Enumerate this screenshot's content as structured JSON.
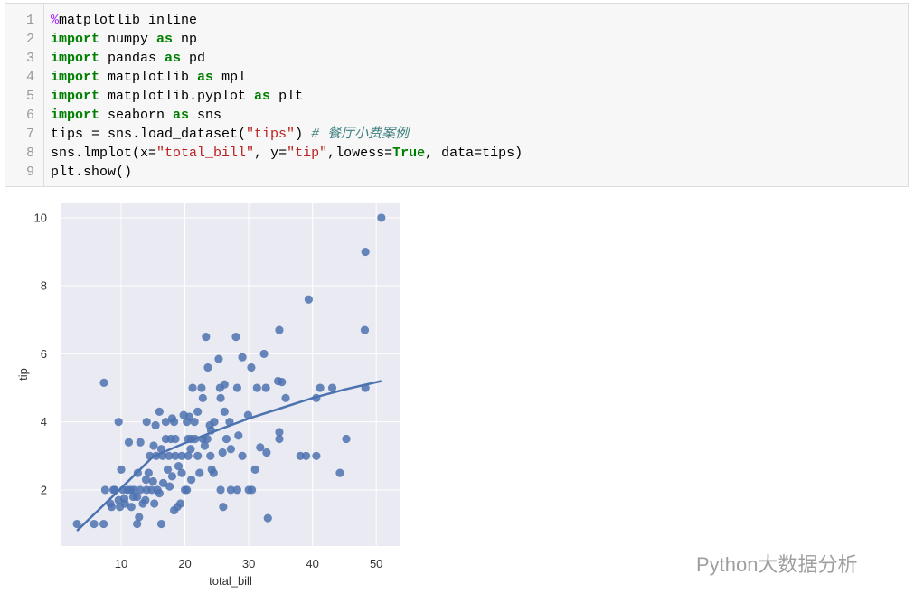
{
  "code": {
    "lines": [
      {
        "number": 1,
        "tokens": [
          {
            "text": "%",
            "class": "mg"
          },
          {
            "text": "matplotlib inline"
          }
        ]
      },
      {
        "number": 2,
        "tokens": [
          {
            "text": "import",
            "class": "kw"
          },
          {
            "text": " numpy "
          },
          {
            "text": "as",
            "class": "kw"
          },
          {
            "text": " np"
          }
        ]
      },
      {
        "number": 3,
        "tokens": [
          {
            "text": "import",
            "class": "kw"
          },
          {
            "text": " pandas "
          },
          {
            "text": "as",
            "class": "kw"
          },
          {
            "text": " pd"
          }
        ]
      },
      {
        "number": 4,
        "tokens": [
          {
            "text": "import",
            "class": "kw"
          },
          {
            "text": " matplotlib "
          },
          {
            "text": "as",
            "class": "kw"
          },
          {
            "text": " mpl"
          }
        ]
      },
      {
        "number": 5,
        "tokens": [
          {
            "text": "import",
            "class": "kw"
          },
          {
            "text": " matplotlib.pyplot "
          },
          {
            "text": "as",
            "class": "kw"
          },
          {
            "text": " plt"
          }
        ]
      },
      {
        "number": 6,
        "tokens": [
          {
            "text": "import",
            "class": "kw"
          },
          {
            "text": " seaborn "
          },
          {
            "text": "as",
            "class": "kw"
          },
          {
            "text": " sns"
          }
        ]
      },
      {
        "number": 7,
        "tokens": [
          {
            "text": "tips = sns.load_dataset("
          },
          {
            "text": "\"tips\"",
            "class": "str"
          },
          {
            "text": ") "
          },
          {
            "text": "# 餐厅小费案例",
            "class": "cm"
          }
        ]
      },
      {
        "number": 8,
        "tokens": [
          {
            "text": "sns.lmplot(x="
          },
          {
            "text": "\"total_bill\"",
            "class": "str"
          },
          {
            "text": ", y="
          },
          {
            "text": "\"tip\"",
            "class": "str"
          },
          {
            "text": ",lowess="
          },
          {
            "text": "True",
            "class": "kw"
          },
          {
            "text": ", data=tips)"
          }
        ]
      },
      {
        "number": 9,
        "tokens": [
          {
            "text": "plt.show()"
          }
        ]
      }
    ]
  },
  "chart_data": {
    "type": "scatter",
    "xlabel": "total_bill",
    "ylabel": "tip",
    "color": "#4c72b0",
    "background": "#eaeaf2",
    "grid": true,
    "xlim": [
      0.5,
      53.8
    ],
    "ylim": [
      0.35,
      10.45
    ],
    "xticks": [
      10,
      20,
      30,
      40,
      50
    ],
    "yticks": [
      2,
      4,
      6,
      8,
      10
    ],
    "x": [
      50.8,
      48.3,
      39.4,
      48.2,
      34.8,
      23.3,
      28.0,
      32.4,
      29,
      25.3,
      23.6,
      30.4,
      7.3,
      26.2,
      34.6,
      35.2,
      21.2,
      22.6,
      25.5,
      28.2,
      31.3,
      32.7,
      41.2,
      43.1,
      48.3,
      35.8,
      40.6,
      25.6,
      26.2,
      16,
      9.6,
      14,
      17,
      18.3,
      20.3,
      21.5,
      24.6,
      27,
      20.7,
      19.8,
      22,
      23.9,
      18,
      15.4,
      24.1,
      29.9,
      34.8,
      34.8,
      45.3,
      28.4,
      17,
      17.8,
      18.5,
      20.5,
      21.6,
      22.8,
      26.5,
      31.8,
      32.8,
      25.9,
      27.2,
      15.1,
      16.3,
      13,
      11.2,
      14.5,
      15.5,
      16.5,
      17.5,
      18.5,
      19.5,
      20.5,
      22,
      24,
      29,
      38.1,
      39,
      40.6,
      44.3,
      33,
      26,
      20.3,
      21,
      22.3,
      24.2,
      25.6,
      27.2,
      28.2,
      30,
      30.5,
      31,
      12.6,
      13.9,
      14.8,
      15.7,
      16.6,
      17.6,
      18.8,
      19.3,
      20,
      10,
      10.3,
      10.6,
      11,
      11.5,
      12,
      12.5,
      13,
      13.4,
      14,
      9,
      9.6,
      9.8,
      8.5,
      7.5,
      7.25,
      5.75,
      3.07,
      12.5,
      12.8,
      16.3,
      18.3,
      8.8,
      10.5,
      11.9,
      13.8,
      14.3,
      15,
      16,
      17.3,
      18,
      19,
      20.9,
      21,
      23.1,
      24.5,
      22.8,
      23.5,
      19.5,
      15.2,
      11.6,
      8.3
    ],
    "y": [
      10,
      9,
      7.6,
      6.7,
      6.7,
      6.5,
      6.5,
      6,
      5.9,
      5.85,
      5.6,
      5.6,
      5.15,
      5.1,
      5.2,
      5.17,
      5,
      5,
      5,
      5,
      5,
      5,
      5,
      5,
      5,
      4.7,
      4.7,
      4.7,
      4.3,
      4.3,
      4,
      4,
      4,
      4,
      4,
      4,
      4,
      4,
      4.15,
      4.2,
      4.3,
      3.9,
      4.1,
      3.9,
      3.75,
      4.2,
      3.7,
      3.5,
      3.5,
      3.6,
      3.5,
      3.5,
      3.5,
      3.5,
      3.5,
      3.5,
      3.5,
      3.25,
      3.1,
      3.1,
      3.2,
      3.3,
      3.2,
      3.4,
      3.4,
      3,
      3,
      3,
      3,
      3,
      3,
      3,
      3,
      3,
      3,
      3,
      3,
      3,
      2.5,
      1.17,
      1.5,
      2,
      2.3,
      2.5,
      2.6,
      2,
      2,
      2,
      2,
      2,
      2.6,
      2.5,
      2.3,
      2,
      2,
      2.2,
      2.1,
      1.5,
      1.6,
      2,
      2.6,
      2,
      1.6,
      2,
      2,
      2,
      1.8,
      2,
      1.6,
      2,
      2,
      1.7,
      1.5,
      1.5,
      2,
      1,
      1,
      1,
      1,
      1.2,
      1,
      1.4,
      2,
      1.75,
      1.8,
      1.7,
      2.5,
      2.25,
      1.9,
      2.6,
      2.4,
      2.7,
      3.2,
      3.5,
      3.3,
      2.5,
      4.7,
      3.5,
      2.5,
      1.6,
      1.5,
      1.6
    ],
    "fit": {
      "x": [
        3.07,
        10,
        15,
        20,
        25,
        30,
        35,
        40,
        45,
        50.8
      ],
      "y": [
        0.8,
        2.05,
        2.98,
        3.38,
        3.75,
        4.1,
        4.4,
        4.7,
        4.95,
        5.2
      ]
    }
  },
  "watermark": "Python大数据分析"
}
